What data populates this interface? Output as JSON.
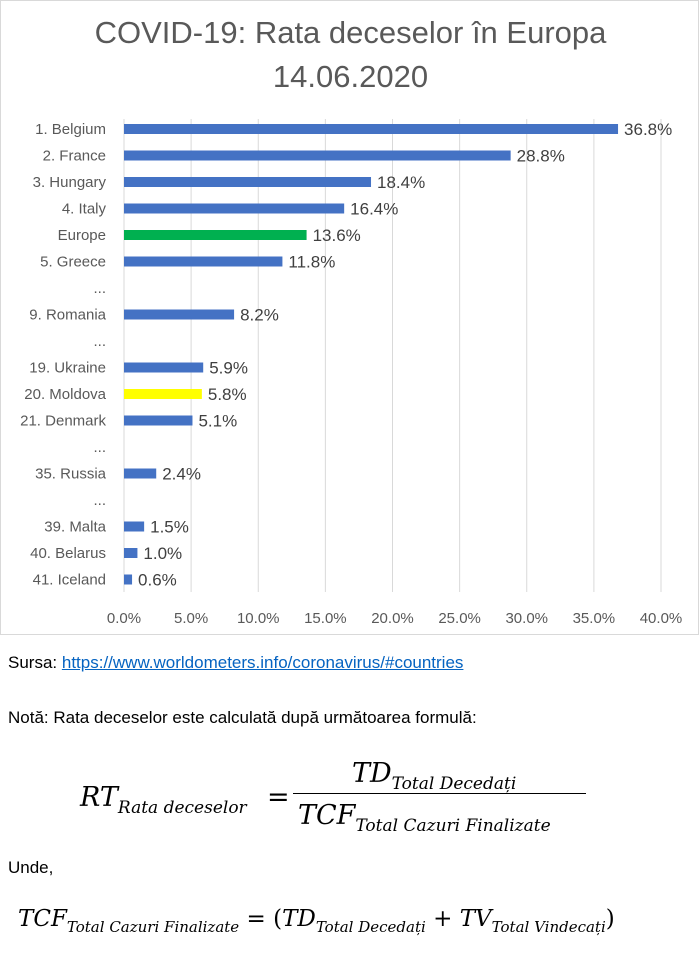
{
  "chart_data": {
    "type": "bar",
    "orientation": "horizontal",
    "title_line1": "COVID-19: Rata deceselor în Europa",
    "title_line2": "14.06.2020",
    "categories": [
      "1. Belgium",
      "2. France",
      "3. Hungary",
      "4. Italy",
      "Europe",
      "5. Greece",
      "...",
      "9. Romania",
      "...",
      "19. Ukraine",
      "20. Moldova",
      "21. Denmark",
      "...",
      "35. Russia",
      "...",
      "39. Malta",
      "40. Belarus",
      "41. Iceland"
    ],
    "values": [
      36.8,
      28.8,
      18.4,
      16.4,
      13.6,
      11.8,
      null,
      8.2,
      null,
      5.9,
      5.8,
      5.1,
      null,
      2.4,
      null,
      1.5,
      1.0,
      0.6
    ],
    "value_labels": [
      "36.8%",
      "28.8%",
      "18.4%",
      "16.4%",
      "13.6%",
      "11.8%",
      "",
      "8.2%",
      "",
      "5.9%",
      "5.8%",
      "5.1%",
      "",
      "2.4%",
      "",
      "1.5%",
      "1.0%",
      "0.6%"
    ],
    "x_ticks": [
      "0.0%",
      "5.0%",
      "10.0%",
      "15.0%",
      "20.0%",
      "25.0%",
      "30.0%",
      "35.0%",
      "40.0%"
    ],
    "xlim": [
      0,
      40
    ],
    "grid": true,
    "colors": {
      "default": "#4472c4",
      "Europe": "#00b050",
      "20. Moldova": "#ffff00",
      "europe_label": "#00b050"
    }
  },
  "source": {
    "label": "Sursa: ",
    "link_text": "https://www.worldometers.info/coronavirus/#countries"
  },
  "note": "Notă: Rata deceselor este calculată după următoarea formulă:",
  "formula1": {
    "lhs": "RT",
    "lhs_sub": "Rata deceselor",
    "equals": "=",
    "num": "TD",
    "num_sub": "Total Decedați",
    "den": "TCF",
    "den_sub": "Total Cazuri Finalizate"
  },
  "unde": "Unde,",
  "formula2": {
    "lhs": "TCF",
    "lhs_sub": "Total Cazuri Finalizate",
    "equals": " = (",
    "t1": "TD",
    "t1_sub": "Total Decedați",
    "plus": " + ",
    "t2": "TV",
    "t2_sub": "Total Vindecați",
    "close": ")"
  }
}
